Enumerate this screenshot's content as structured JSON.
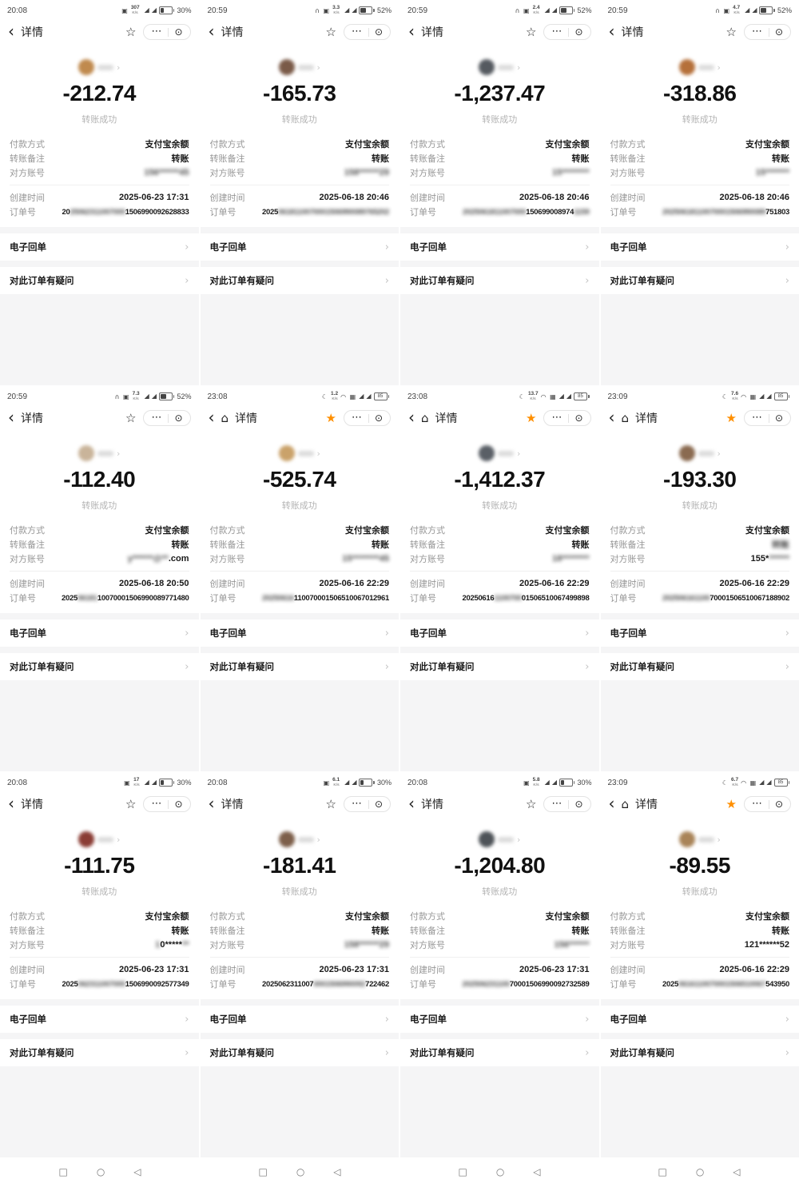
{
  "shared": {
    "title": "详情",
    "success": "转账成功",
    "labels": {
      "payment": "付款方式",
      "note": "转账备注",
      "account": "对方账号",
      "created": "创建时间",
      "order": "订单号"
    },
    "payment_value": "支付宝余额",
    "receipt": "电子回单",
    "question": "对此订单有疑问",
    "accent_star_color": "#ff8f00",
    "unit": "K/s"
  },
  "cells": [
    {
      "time": "20:08",
      "speed": "307",
      "unit": "K/s",
      "icons_pre": [
        "box"
      ],
      "icons_post": [],
      "battery": {
        "style": "pct",
        "text": "30%"
      },
      "nav": {
        "has_home": false,
        "star_filled": false
      },
      "avatar_color": "#c08a4e",
      "amount": "-212.74",
      "note_segments": [
        [
          "转账",
          0
        ]
      ],
      "account_segments": [
        [
          "156******45",
          1
        ]
      ],
      "date": "2025-06-23 17:31",
      "order_segments": [
        [
          "20",
          0
        ],
        [
          "25062311007000",
          1
        ],
        [
          "1506990092628833",
          0
        ]
      ]
    },
    {
      "time": "20:59",
      "speed": "3.3",
      "unit": "K/s",
      "icons_pre": [
        "headset",
        "box"
      ],
      "icons_post": [],
      "battery": {
        "style": "pct",
        "text": "52%"
      },
      "nav": {
        "has_home": false,
        "star_filled": false
      },
      "avatar_color": "#7a5a48",
      "amount": "-165.73",
      "note_segments": [
        [
          "转账",
          0
        ]
      ],
      "account_segments": [
        [
          "158******29",
          1
        ]
      ],
      "date": "2025-06-18 20:46",
      "order_segments": [
        [
          "2025",
          0
        ],
        [
          "0618110070001506990089765202",
          1
        ]
      ]
    },
    {
      "time": "20:59",
      "speed": "2.4",
      "unit": "K/s",
      "icons_pre": [
        "headset",
        "box"
      ],
      "icons_post": [],
      "battery": {
        "style": "pct",
        "text": "52%"
      },
      "nav": {
        "has_home": false,
        "star_filled": false
      },
      "avatar_color": "#555a60",
      "amount": "-1,237.47",
      "note_segments": [
        [
          "转账",
          0
        ]
      ],
      "account_segments": [
        [
          "15********",
          1
        ]
      ],
      "date": "2025-06-18 20:46",
      "order_segments": [
        [
          "2025061811007000",
          1
        ],
        [
          "150699008974",
          0
        ],
        [
          "1159",
          1
        ]
      ]
    },
    {
      "time": "20:59",
      "speed": "4.7",
      "unit": "K/s",
      "icons_pre": [
        "headset",
        "box"
      ],
      "icons_post": [],
      "battery": {
        "style": "pct",
        "text": "52%"
      },
      "nav": {
        "has_home": false,
        "star_filled": false
      },
      "avatar_color": "#b5703a",
      "amount": "-318.86",
      "note_segments": [
        [
          "转账",
          0
        ]
      ],
      "account_segments": [
        [
          "15*******",
          1
        ]
      ],
      "date": "2025-06-18 20:46",
      "order_segments": [
        [
          "20250618110070001506990089",
          1
        ],
        [
          "751803",
          0
        ]
      ]
    },
    {
      "time": "20:59",
      "speed": "7.3",
      "unit": "K/s",
      "icons_pre": [
        "headset",
        "box"
      ],
      "icons_post": [],
      "battery": {
        "style": "pct",
        "text": "52%"
      },
      "nav": {
        "has_home": false,
        "star_filled": false
      },
      "avatar_color": "#c9b49a",
      "amount": "-112.40",
      "note_segments": [
        [
          "转账",
          0
        ]
      ],
      "account_segments": [
        [
          "y******@**",
          1
        ],
        [
          ".com",
          0
        ]
      ],
      "date": "2025-06-18 20:50",
      "order_segments": [
        [
          "2025",
          0
        ],
        [
          "06181",
          1
        ],
        [
          "10070001506990089771480",
          0
        ]
      ]
    },
    {
      "time": "23:08",
      "speed": "1.2",
      "unit": "K/s",
      "icons_pre": [
        "moon"
      ],
      "icons_post": [
        "wifi",
        "sim"
      ],
      "battery": {
        "style": "framed",
        "text": "85"
      },
      "nav": {
        "has_home": true,
        "star_filled": true
      },
      "avatar_color": "#caa26a",
      "amount": "-525.74",
      "note_segments": [
        [
          "转账",
          0
        ]
      ],
      "account_segments": [
        [
          "15********45",
          1
        ]
      ],
      "date": "2025-06-16 22:29",
      "order_segments": [
        [
          "20250616",
          1
        ],
        [
          "110070001506510067012961",
          0
        ]
      ]
    },
    {
      "time": "23:08",
      "speed": "13.7",
      "unit": "K/s",
      "icons_pre": [
        "moon"
      ],
      "icons_post": [
        "wifi",
        "sim"
      ],
      "battery": {
        "style": "framed",
        "text": "85"
      },
      "nav": {
        "has_home": true,
        "star_filled": true
      },
      "avatar_color": "#5a5f66",
      "amount": "-1,412.37",
      "note_segments": [
        [
          "转账",
          0
        ]
      ],
      "account_segments": [
        [
          "18********",
          1
        ]
      ],
      "date": "2025-06-16 22:29",
      "order_segments": [
        [
          "20250616",
          0
        ],
        [
          "1100700",
          1
        ],
        [
          "01506510067499898",
          0
        ]
      ]
    },
    {
      "time": "23:09",
      "speed": "7.6",
      "unit": "K/s",
      "icons_pre": [
        "moon"
      ],
      "icons_post": [
        "wifi",
        "sim"
      ],
      "battery": {
        "style": "framed",
        "text": "85"
      },
      "nav": {
        "has_home": true,
        "star_filled": true
      },
      "avatar_color": "#8a6a50",
      "amount": "-193.30",
      "note_segments": [
        [
          "转账",
          1
        ]
      ],
      "account_segments": [
        [
          "155*",
          0
        ],
        [
          "******",
          1
        ]
      ],
      "date": "2025-06-16 22:29",
      "order_segments": [
        [
          "202506161100",
          1
        ],
        [
          "70001506510067188902",
          0
        ]
      ]
    },
    {
      "time": "20:08",
      "speed": "17",
      "unit": "K/s",
      "icons_pre": [
        "box"
      ],
      "icons_post": [],
      "battery": {
        "style": "pct",
        "text": "30%"
      },
      "nav": {
        "has_home": false,
        "star_filled": false
      },
      "avatar_color": "#8a3c34",
      "amount": "-111.75",
      "note_segments": [
        [
          "转账",
          0
        ]
      ],
      "account_segments": [
        [
          "1",
          1
        ],
        [
          "0*****",
          0
        ],
        [
          "**",
          1
        ]
      ],
      "date": "2025-06-23 17:31",
      "order_segments": [
        [
          "2025",
          0
        ],
        [
          "062311007000",
          1
        ],
        [
          "1506990092577349",
          0
        ]
      ]
    },
    {
      "time": "20:08",
      "speed": "6.1",
      "unit": "K/s",
      "icons_pre": [
        "box"
      ],
      "icons_post": [],
      "battery": {
        "style": "pct",
        "text": "30%"
      },
      "nav": {
        "has_home": false,
        "star_filled": false
      },
      "avatar_color": "#7d5f4a",
      "amount": "-181.41",
      "note_segments": [
        [
          "转账",
          0
        ]
      ],
      "account_segments": [
        [
          "158******29",
          1
        ]
      ],
      "date": "2025-06-23 17:31",
      "order_segments": [
        [
          "2025062311007",
          0
        ],
        [
          "0001506990092",
          1
        ],
        [
          "722462",
          0
        ]
      ]
    },
    {
      "time": "20:08",
      "speed": "5.8",
      "unit": "K/s",
      "icons_pre": [
        "box"
      ],
      "icons_post": [],
      "battery": {
        "style": "pct",
        "text": "30%"
      },
      "nav": {
        "has_home": false,
        "star_filled": false
      },
      "avatar_color": "#4e5358",
      "amount": "-1,204.80",
      "note_segments": [
        [
          "转账",
          0
        ]
      ],
      "account_segments": [
        [
          "156******",
          1
        ]
      ],
      "date": "2025-06-23 17:31",
      "order_segments": [
        [
          "202506231100",
          1
        ],
        [
          "70001506990092732589",
          0
        ]
      ]
    },
    {
      "time": "23:09",
      "speed": "6.7",
      "unit": "K/s",
      "icons_pre": [
        "moon"
      ],
      "icons_post": [
        "wifi",
        "sim"
      ],
      "battery": {
        "style": "framed",
        "text": "85"
      },
      "nav": {
        "has_home": true,
        "star_filled": true
      },
      "avatar_color": "#a98458",
      "amount": "-89.55",
      "note_segments": [
        [
          "转账",
          0
        ]
      ],
      "account_segments": [
        [
          "121******52",
          0
        ]
      ],
      "date": "2025-06-16 22:29",
      "order_segments": [
        [
          "2025",
          0
        ],
        [
          "0616110070001506510067",
          1
        ],
        [
          "543950",
          0
        ]
      ]
    }
  ]
}
